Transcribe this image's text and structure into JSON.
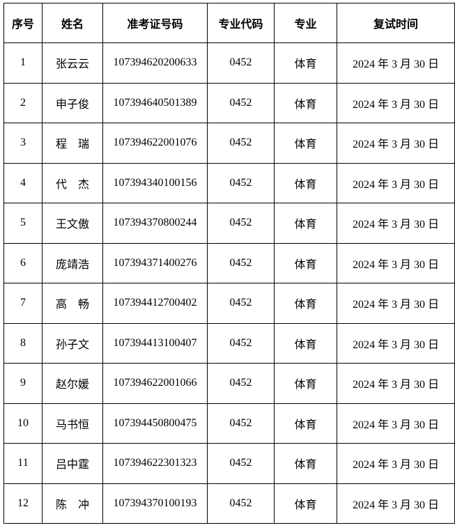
{
  "headers": [
    "序号",
    "姓名",
    "准考证号码",
    "专业代码",
    "专业",
    "复试时间"
  ],
  "rows": [
    [
      "1",
      "张云云",
      "107394620200633",
      "0452",
      "体育",
      "2024 年 3 月 30 日"
    ],
    [
      "2",
      "申子俊",
      "107394640501389",
      "0452",
      "体育",
      "2024 年 3 月 30 日"
    ],
    [
      "3",
      "程　瑞",
      "107394622001076",
      "0452",
      "体育",
      "2024 年 3 月 30 日"
    ],
    [
      "4",
      "代　杰",
      "107394340100156",
      "0452",
      "体育",
      "2024 年 3 月 30 日"
    ],
    [
      "5",
      "王文傲",
      "107394370800244",
      "0452",
      "体育",
      "2024 年 3 月 30 日"
    ],
    [
      "6",
      "庞靖浩",
      "107394371400276",
      "0452",
      "体育",
      "2024 年 3 月 30 日"
    ],
    [
      "7",
      "高　畅",
      "107394412700402",
      "0452",
      "体育",
      "2024 年 3 月 30 日"
    ],
    [
      "8",
      "孙子文",
      "107394413100407",
      "0452",
      "体育",
      "2024 年 3 月 30 日"
    ],
    [
      "9",
      "赵尔媛",
      "107394622001066",
      "0452",
      "体育",
      "2024 年 3 月 30 日"
    ],
    [
      "10",
      "马书恒",
      "107394450800475",
      "0452",
      "体育",
      "2024 年 3 月 30 日"
    ],
    [
      "11",
      "吕中霆",
      "107394622301323",
      "0452",
      "体育",
      "2024 年 3 月 30 日"
    ],
    [
      "12",
      "陈　冲",
      "107394370100193",
      "0452",
      "体育",
      "2024 年 3 月 30 日"
    ]
  ]
}
